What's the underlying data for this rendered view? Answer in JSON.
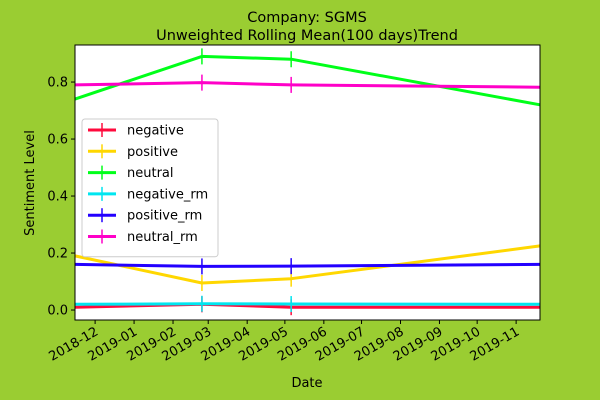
{
  "chart_data": {
    "type": "line",
    "title_line1": "Company: SGMS",
    "title_line2": "Unweighted Rolling Mean(100 days)Trend",
    "xlabel": "Date",
    "ylabel": "Sentiment Level",
    "x_ticks": [
      "2018-12",
      "2019-01",
      "2019-02",
      "2019-03",
      "2019-04",
      "2019-05",
      "2019-06",
      "2019-07",
      "2019-08",
      "2019-09",
      "2019-10",
      "2019-11"
    ],
    "xlim": [
      "2018-11-15",
      "2019-11-20"
    ],
    "y_ticks": [
      "0.0",
      "0.2",
      "0.4",
      "0.6",
      "0.8"
    ],
    "ylim": [
      -0.035,
      0.93
    ],
    "grid": false,
    "legend_position": "center-left",
    "x": [
      "2018-11-15",
      "2019-02-24",
      "2019-05-06",
      "2019-11-20"
    ],
    "series": [
      {
        "name": "negative",
        "color": "#ff0a3c",
        "values": [
          0.01,
          0.02,
          0.01,
          0.01
        ]
      },
      {
        "name": "positive",
        "color": "#ffd700",
        "values": [
          0.19,
          0.095,
          0.11,
          0.225
        ]
      },
      {
        "name": "neutral",
        "color": "#00ff19",
        "values": [
          0.74,
          0.89,
          0.88,
          0.72
        ]
      },
      {
        "name": "negative_rm",
        "color": "#00e6f0",
        "values": [
          0.02,
          0.022,
          0.021,
          0.02
        ]
      },
      {
        "name": "positive_rm",
        "color": "#2300ff",
        "values": [
          0.16,
          0.153,
          0.154,
          0.16
        ]
      },
      {
        "name": "neutral_rm",
        "color": "#ff00c8",
        "values": [
          0.79,
          0.798,
          0.79,
          0.782
        ]
      }
    ]
  }
}
